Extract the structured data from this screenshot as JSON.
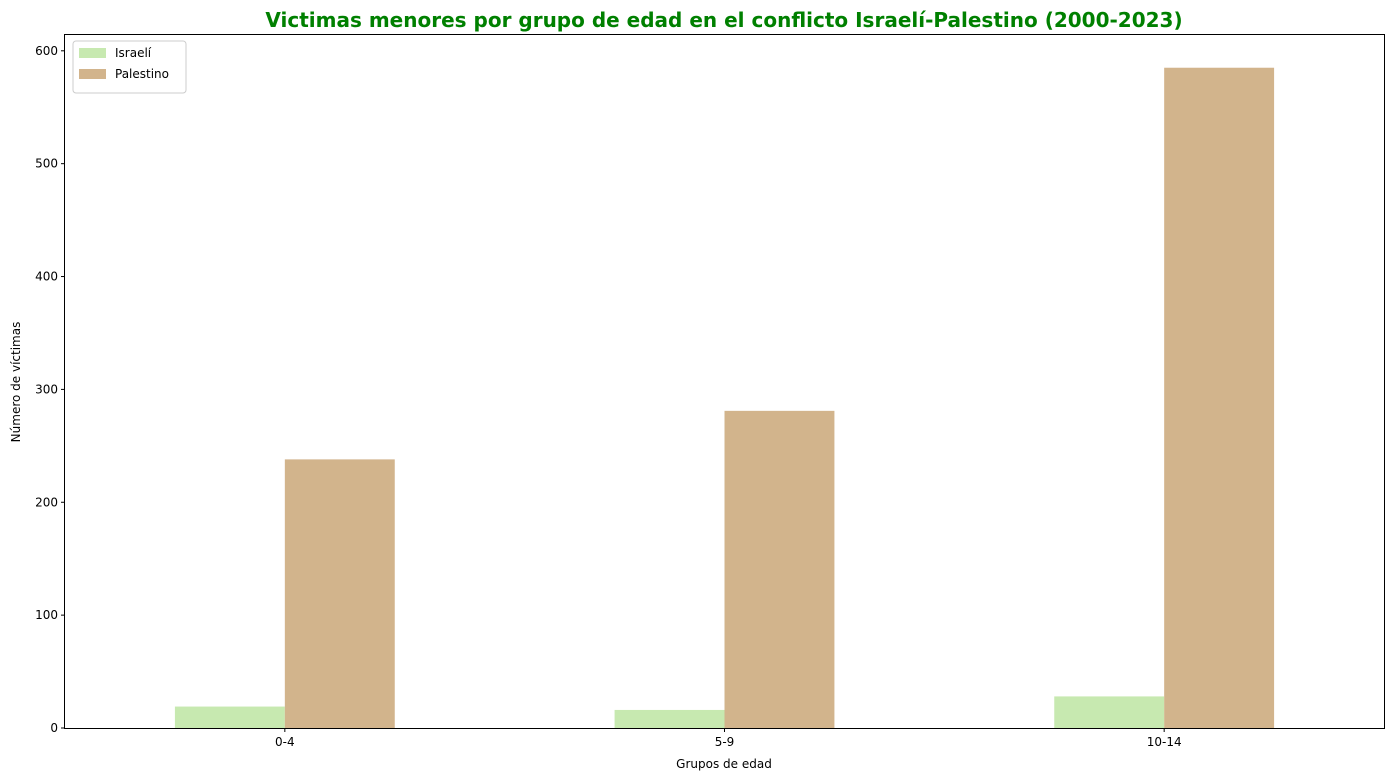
{
  "chart_data": {
    "type": "bar",
    "title": "Victimas menores por grupo de edad en el conflicto Israelí-Palestino  (2000-2023)",
    "title_color": "#008000",
    "xlabel": "Grupos de edad",
    "ylabel": "Número de víctimas",
    "categories": [
      "0-4",
      "5-9",
      "10-14"
    ],
    "series": [
      {
        "name": "Israelí",
        "values": [
          19,
          16,
          28
        ],
        "color": "#c7e9b0"
      },
      {
        "name": "Palestino",
        "values": [
          238,
          281,
          585
        ],
        "color": "#d2b48c"
      }
    ],
    "ylim": [
      0,
      614
    ],
    "yticks": [
      0,
      100,
      200,
      300,
      400,
      500,
      600
    ],
    "grid": false,
    "legend_position": "top-left"
  }
}
